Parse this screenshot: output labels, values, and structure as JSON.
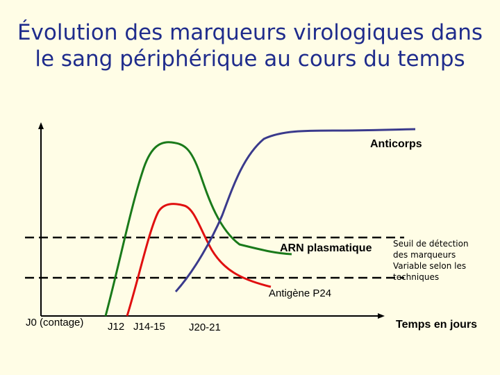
{
  "title": {
    "line1": "Évolution des marqueurs virologiques dans",
    "line2": "le sang périphérique au cours du temps"
  },
  "labels": {
    "anticorps": "Anticorps",
    "arn": "ARN plasmatique",
    "antigene": "Antigène P24",
    "seuil_line1": "Seuil de détection",
    "seuil_line2": "des marqueurs",
    "seuil_line3": "Variable selon les",
    "seuil_line4": "techniques",
    "x_axis": "Temps en jours"
  },
  "x_ticks": {
    "j0": "J0 (contage)",
    "j12": "J12",
    "j14": "J14-15",
    "j20": "J20-21"
  },
  "colors": {
    "background": "#fffde6",
    "title": "#1f2c8c",
    "anticorps": "#3a3a8c",
    "arn": "#1a7a1a",
    "antigene": "#e01010",
    "axis": "#000000"
  }
}
